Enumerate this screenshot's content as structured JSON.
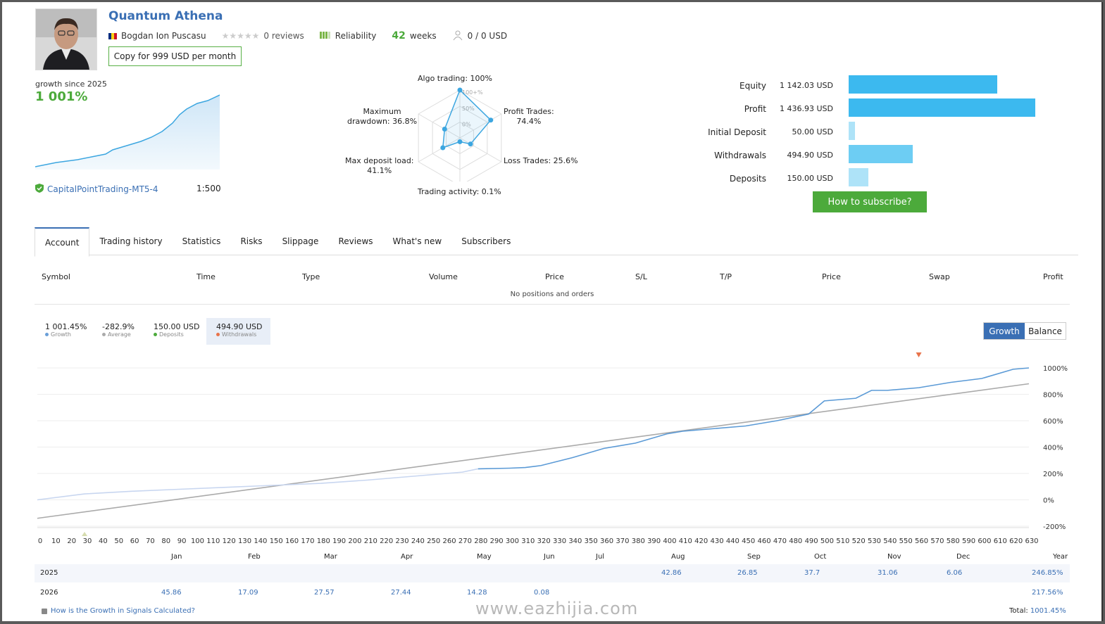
{
  "header": {
    "title": "Quantum Athena",
    "author": "Bogdan Ion Puscasu",
    "reviews": "0 reviews",
    "reliability_label": "Reliability",
    "weeks": "42",
    "weeks_unit": "weeks",
    "subscribers": "0 / 0 USD",
    "copy_button": "Copy for 999 USD per month"
  },
  "mini_growth": {
    "label": "growth since 2025",
    "value": "1 001%",
    "broker": "CapitalPointTrading-MT5-4",
    "leverage": "1:500"
  },
  "radar": {
    "labels": {
      "algo": "Algo trading: 100%",
      "profit": "Profit Trades:",
      "profit_val": "74.4%",
      "loss": "Loss Trades: 25.6%",
      "activity": "Trading activity: 0.1%",
      "deposit_load": "Max deposit load:",
      "deposit_load_val": "41.1%",
      "drawdown": "Maximum",
      "drawdown2": "drawdown: 36.8%"
    },
    "ring_labels": [
      "100+%",
      "50%",
      "0%"
    ],
    "values": {
      "algo": 100,
      "profit": 74.4,
      "loss": 25.6,
      "activity": 0.1,
      "deposit_load": 41.1,
      "drawdown": 36.8
    }
  },
  "bars": {
    "max": 1436.93,
    "items": [
      {
        "label": "Equity",
        "value": "1 142.03 USD",
        "amount": 1142.03,
        "color": "#3cb9ef"
      },
      {
        "label": "Profit",
        "value": "1 436.93 USD",
        "amount": 1436.93,
        "color": "#3cb9ef"
      },
      {
        "label": "Initial Deposit",
        "value": "50.00 USD",
        "amount": 50,
        "color": "#aee3f8"
      },
      {
        "label": "Withdrawals",
        "value": "494.90 USD",
        "amount": 494.9,
        "color": "#6dcdf3"
      },
      {
        "label": "Deposits",
        "value": "150.00 USD",
        "amount": 150,
        "color": "#aee3f8"
      }
    ],
    "subscribe_button": "How to subscribe?"
  },
  "tabs": [
    "Account",
    "Trading history",
    "Statistics",
    "Risks",
    "Slippage",
    "Reviews",
    "What's new",
    "Subscribers"
  ],
  "positions": {
    "columns": [
      "Symbol",
      "Time",
      "Type",
      "Volume",
      "Price",
      "S/L",
      "T/P",
      "Price",
      "Swap",
      "Profit"
    ],
    "empty": "No positions and orders"
  },
  "stats": [
    {
      "value": "1 001.45%",
      "label": "Growth",
      "color": "#6a9fd8"
    },
    {
      "value": "-282.9%",
      "label": "Average",
      "color": "#aaaaaa"
    },
    {
      "value": "150.00 USD",
      "label": "Deposits",
      "color": "#4caa3b"
    },
    {
      "value": "494.90 USD",
      "label": "Withdrawals",
      "color": "#e8734a"
    }
  ],
  "chart_toggle": {
    "growth": "Growth",
    "balance": "Balance"
  },
  "chart_data": {
    "type": "line",
    "x_ticks": [
      0,
      10,
      20,
      30,
      40,
      50,
      60,
      70,
      80,
      90,
      100,
      110,
      120,
      130,
      140,
      150,
      160,
      170,
      180,
      190,
      200,
      210,
      220,
      230,
      240,
      250,
      260,
      270,
      280,
      290,
      300,
      310,
      320,
      330,
      340,
      350,
      360,
      370,
      380,
      390,
      400,
      410,
      420,
      430,
      440,
      450,
      460,
      470,
      480,
      490,
      500,
      510,
      520,
      530,
      540,
      550,
      560,
      570,
      580,
      590,
      600,
      610,
      620,
      630
    ],
    "y_ticks": [
      "1000%",
      "800%",
      "600%",
      "400%",
      "200%",
      "0%",
      "-200%"
    ],
    "ylim": [
      -200,
      1000
    ],
    "xlim": [
      0,
      630
    ],
    "months": [
      "Jan",
      "Feb",
      "Mar",
      "Apr",
      "May",
      "Jun",
      "Jul",
      "Aug",
      "Sep",
      "Oct",
      "Nov",
      "Dec",
      "Year"
    ],
    "series": [
      {
        "name": "Growth",
        "x": [
          0,
          30,
          60,
          90,
          120,
          150,
          180,
          210,
          240,
          270,
          280,
          300,
          310,
          320,
          340,
          360,
          380,
          400,
          410,
          430,
          450,
          470,
          490,
          500,
          520,
          530,
          540,
          560,
          580,
          600,
          620,
          630
        ],
        "y": [
          0,
          45,
          65,
          80,
          95,
          110,
          125,
          150,
          180,
          210,
          235,
          240,
          245,
          260,
          320,
          390,
          430,
          500,
          520,
          540,
          560,
          600,
          650,
          750,
          770,
          830,
          830,
          850,
          890,
          920,
          990,
          1000
        ]
      },
      {
        "name": "Average",
        "x": [
          0,
          630
        ],
        "y": [
          -140,
          880
        ]
      }
    ]
  },
  "yearly": {
    "rows": [
      {
        "year": "2025",
        "cells": [
          "",
          "",
          "",
          "",
          "",
          "",
          "",
          "42.86",
          "26.85",
          "37.7",
          "31.06",
          "6.06"
        ],
        "total": "246.85%"
      },
      {
        "year": "2026",
        "cells": [
          "45.86",
          "17.09",
          "27.57",
          "27.44",
          "14.28",
          "0.08",
          "",
          "",
          "",
          "",
          "",
          ""
        ],
        "total": "217.56%"
      }
    ],
    "footer_link": "How is the Growth in Signals Calculated?",
    "total_label": "Total:",
    "total_value": "1001.45%"
  },
  "watermark": "www.eazhijia.com"
}
